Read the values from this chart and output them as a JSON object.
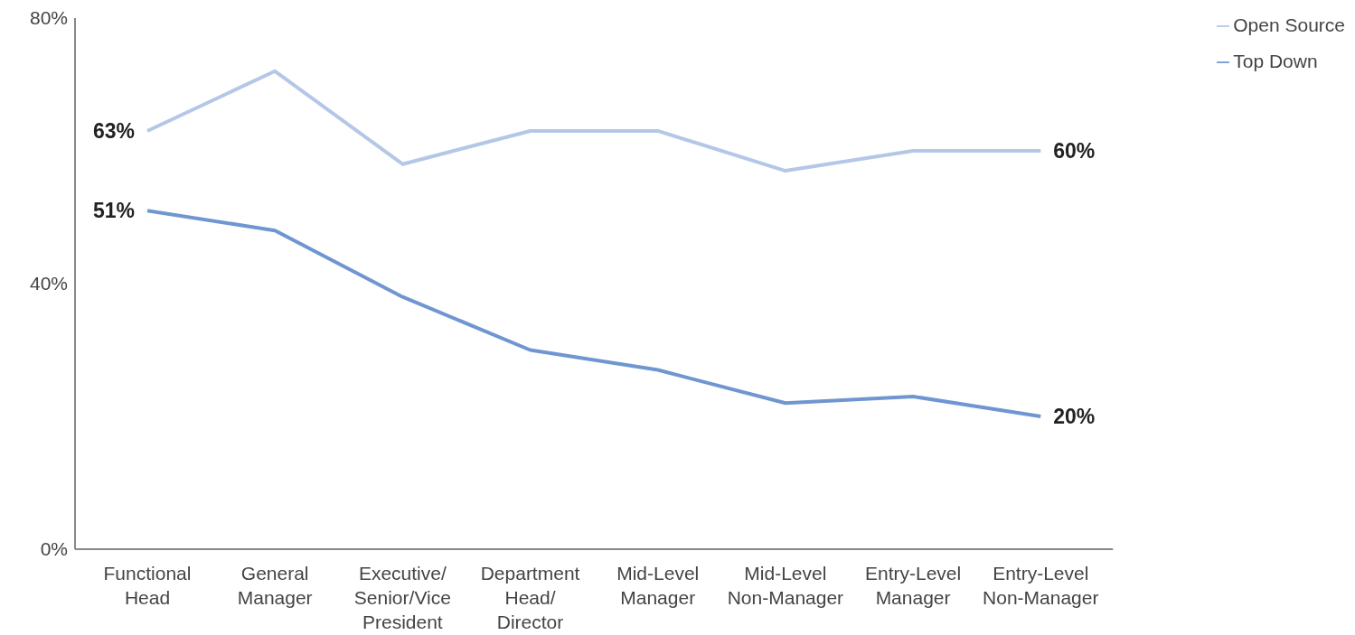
{
  "chart_data": {
    "type": "line",
    "categories": [
      "Functional Head",
      "General Manager",
      "Executive/Senior/Vice President",
      "Department Head/Director",
      "Mid-Level Manager",
      "Mid-Level Non-Manager",
      "Entry-Level Manager",
      "Entry-Level Non-Manager"
    ],
    "series": [
      {
        "name": "Open Source",
        "color": "#b4c7e7",
        "values": [
          63,
          72,
          58,
          63,
          63,
          57,
          60,
          60
        ],
        "value_labels": [
          "63%",
          null,
          null,
          null,
          null,
          null,
          null,
          "60%"
        ]
      },
      {
        "name": "Top Down",
        "color": "#7096d1",
        "values": [
          51,
          48,
          38,
          30,
          27,
          22,
          23,
          20
        ],
        "value_labels": [
          "51%",
          null,
          null,
          null,
          null,
          null,
          null,
          "20%"
        ]
      }
    ],
    "ylim": [
      0,
      80
    ],
    "yticks": [
      {
        "value": 0,
        "label": "0%"
      },
      {
        "value": 40,
        "label": "40%"
      },
      {
        "value": 80,
        "label": "80%"
      }
    ],
    "grid": false,
    "legend": "top right",
    "marker": "none",
    "line_style": "solid"
  }
}
